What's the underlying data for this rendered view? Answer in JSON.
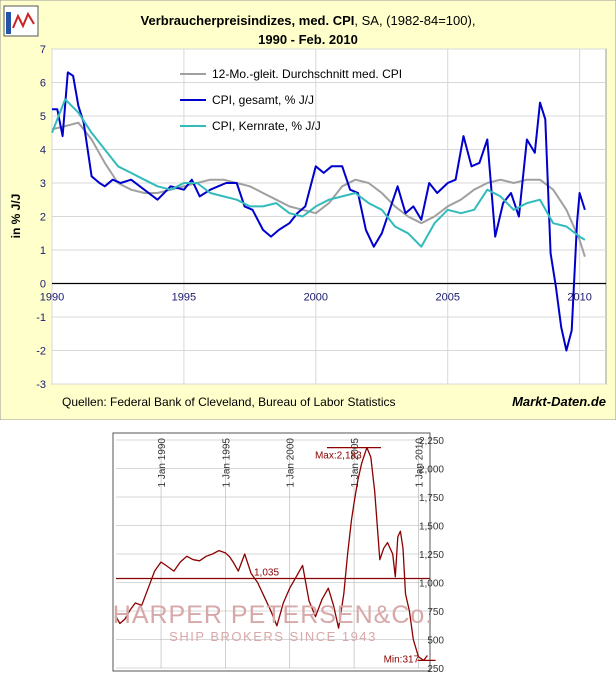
{
  "chart_data": [
    {
      "type": "line",
      "title": "Verbraucherpreisindizes, med. CPI",
      "title_suffix": ", SA, (1982-84=100),",
      "subtitle": "1990 - Feb. 2010",
      "ylabel": "in % J/J",
      "xlabel": "",
      "x_ticks": [
        "1990",
        "1995",
        "2000",
        "2005",
        "2010"
      ],
      "y_ticks": [
        "7",
        "6",
        "5",
        "4",
        "3",
        "2",
        "1",
        "0",
        "-1",
        "-2",
        "-3"
      ],
      "xlim": [
        1990,
        2011
      ],
      "ylim": [
        -3,
        7
      ],
      "grid": true,
      "legend_position": "top-center",
      "source": "Quellen: Federal Bank of Cleveland, Bureau of Labor Statistics",
      "brand": "Markt-Daten.de",
      "colors": {
        "background": "#ffffcc",
        "plot": "#ffffff",
        "border": "#999999",
        "axis_text": "#1a1a6e"
      },
      "series": [
        {
          "name": "12-Mo.-gleit. Durchschnitt med. CPI",
          "color": "#a0a0a0",
          "x": [
            1990.0,
            1990.5,
            1991.0,
            1991.5,
            1992.0,
            1992.5,
            1993.0,
            1993.5,
            1994.0,
            1994.5,
            1995.0,
            1995.5,
            1996.0,
            1996.5,
            1997.0,
            1997.5,
            1998.0,
            1998.5,
            1999.0,
            1999.5,
            2000.0,
            2000.5,
            2001.0,
            2001.5,
            2002.0,
            2002.5,
            2003.0,
            2003.5,
            2004.0,
            2004.5,
            2005.0,
            2005.5,
            2006.0,
            2006.5,
            2007.0,
            2007.5,
            2008.0,
            2008.5,
            2009.0,
            2009.5,
            2010.0,
            2010.2
          ],
          "values": [
            4.6,
            4.7,
            4.8,
            4.3,
            3.6,
            3.0,
            2.8,
            2.7,
            2.7,
            2.8,
            2.9,
            3.0,
            3.1,
            3.1,
            3.0,
            2.9,
            2.7,
            2.5,
            2.3,
            2.2,
            2.1,
            2.4,
            2.9,
            3.1,
            3.0,
            2.7,
            2.3,
            2.0,
            1.8,
            2.0,
            2.3,
            2.5,
            2.8,
            3.0,
            3.1,
            3.0,
            3.1,
            3.1,
            2.8,
            2.2,
            1.3,
            0.8
          ]
        },
        {
          "name": "CPI, gesamt, % J/J",
          "color": "#0000cc",
          "x": [
            1990.0,
            1990.2,
            1990.4,
            1990.6,
            1990.8,
            1991.0,
            1991.2,
            1991.5,
            1991.8,
            1992.0,
            1992.3,
            1992.6,
            1993.0,
            1993.5,
            1994.0,
            1994.5,
            1995.0,
            1995.3,
            1995.6,
            1996.0,
            1996.3,
            1996.6,
            1997.0,
            1997.3,
            1997.6,
            1998.0,
            1998.3,
            1998.6,
            1999.0,
            1999.3,
            1999.6,
            2000.0,
            2000.3,
            2000.6,
            2001.0,
            2001.3,
            2001.6,
            2001.9,
            2002.2,
            2002.5,
            2002.8,
            2003.1,
            2003.4,
            2003.7,
            2004.0,
            2004.3,
            2004.6,
            2005.0,
            2005.3,
            2005.6,
            2005.9,
            2006.2,
            2006.5,
            2006.8,
            2007.1,
            2007.4,
            2007.7,
            2008.0,
            2008.3,
            2008.5,
            2008.7,
            2008.9,
            2009.1,
            2009.3,
            2009.5,
            2009.7,
            2009.9,
            2010.0,
            2010.2
          ],
          "values": [
            5.2,
            5.2,
            4.4,
            6.3,
            6.2,
            5.3,
            4.8,
            3.2,
            3.0,
            2.9,
            3.1,
            3.0,
            3.1,
            2.8,
            2.5,
            2.9,
            2.8,
            3.1,
            2.6,
            2.8,
            2.9,
            3.0,
            3.0,
            2.3,
            2.2,
            1.6,
            1.4,
            1.6,
            1.8,
            2.1,
            2.3,
            3.5,
            3.3,
            3.5,
            3.5,
            2.8,
            2.7,
            1.6,
            1.1,
            1.5,
            2.2,
            2.9,
            2.1,
            2.3,
            1.9,
            3.0,
            2.7,
            3.0,
            3.1,
            4.4,
            3.5,
            3.6,
            4.3,
            1.4,
            2.4,
            2.7,
            2.0,
            4.3,
            3.9,
            5.4,
            4.9,
            0.9,
            -0.1,
            -1.3,
            -2.0,
            -1.4,
            1.8,
            2.7,
            2.2
          ]
        },
        {
          "name": "CPI, Kernrate, % J/J",
          "color": "#33bbbb",
          "x": [
            1990.0,
            1990.5,
            1991.0,
            1991.5,
            1992.0,
            1992.5,
            1993.0,
            1993.5,
            1994.0,
            1994.5,
            1995.0,
            1995.5,
            1996.0,
            1996.5,
            1997.0,
            1997.5,
            1998.0,
            1998.5,
            1999.0,
            1999.5,
            2000.0,
            2000.5,
            2001.0,
            2001.5,
            2002.0,
            2002.5,
            2003.0,
            2003.5,
            2004.0,
            2004.5,
            2005.0,
            2005.5,
            2006.0,
            2006.5,
            2007.0,
            2007.5,
            2008.0,
            2008.5,
            2009.0,
            2009.5,
            2010.0,
            2010.2
          ],
          "values": [
            4.5,
            5.5,
            5.1,
            4.5,
            4.0,
            3.5,
            3.3,
            3.1,
            2.9,
            2.8,
            3.0,
            3.0,
            2.7,
            2.6,
            2.5,
            2.3,
            2.3,
            2.4,
            2.1,
            2.0,
            2.3,
            2.5,
            2.6,
            2.7,
            2.4,
            2.2,
            1.7,
            1.5,
            1.1,
            1.8,
            2.2,
            2.1,
            2.2,
            2.8,
            2.6,
            2.2,
            2.4,
            2.5,
            1.8,
            1.7,
            1.4,
            1.3
          ]
        }
      ]
    },
    {
      "type": "line",
      "x_ticks": [
        "1 Jan 1990",
        "1 Jan 1995",
        "1 Jan 2000",
        "1 Jan 2005",
        "1 Jan 2010"
      ],
      "y_ticks": [
        "2,250",
        "2,000",
        "1,750",
        "1,500",
        "1,250",
        "1,000",
        "750",
        "500",
        "250"
      ],
      "ylim": [
        250,
        2250
      ],
      "xlim": [
        1986.5,
        2010.9
      ],
      "reference_line": {
        "label": "1,035",
        "value": 1035
      },
      "max_label": "Max:2,183",
      "min_label": "Min:317",
      "watermark_line1": "HARPER PETERSEN&Co.",
      "watermark_line2": "SHIP BROKERS SINCE 1943",
      "colors": {
        "line": "#8b0000",
        "grid": "#b0b0b0",
        "watermark": "#d8a8a8"
      },
      "series": [
        {
          "color": "#8b0000",
          "x": [
            1986.5,
            1986.8,
            1987.2,
            1987.6,
            1988.0,
            1988.5,
            1989.0,
            1989.5,
            1990.0,
            1990.5,
            1991.0,
            1991.5,
            1992.0,
            1992.5,
            1993.0,
            1993.5,
            1994.0,
            1994.5,
            1995.0,
            1995.3,
            1995.6,
            1996.0,
            1996.5,
            1997.0,
            1997.5,
            1998.0,
            1998.5,
            1999.0,
            1999.5,
            2000.0,
            2000.5,
            2001.0,
            2001.5,
            2002.0,
            2002.5,
            2003.0,
            2003.4,
            2003.8,
            2004.2,
            2004.5,
            2004.8,
            2005.0,
            2005.3,
            2005.6,
            2006.0,
            2006.3,
            2006.6,
            2007.0,
            2007.3,
            2007.6,
            2008.0,
            2008.2,
            2008.4,
            2008.6,
            2008.8,
            2009.0,
            2009.3,
            2009.6,
            2010.0,
            2010.4,
            2010.7
          ],
          "values": [
            700,
            640,
            680,
            760,
            820,
            800,
            950,
            1100,
            1180,
            1140,
            1100,
            1180,
            1230,
            1200,
            1190,
            1230,
            1250,
            1280,
            1260,
            1230,
            1180,
            1100,
            1250,
            1080,
            1000,
            880,
            760,
            620,
            820,
            950,
            1050,
            1150,
            840,
            700,
            850,
            950,
            800,
            600,
            900,
            1250,
            1550,
            1700,
            1900,
            2050,
            2183,
            2100,
            1800,
            1200,
            1300,
            1350,
            1250,
            1050,
            1400,
            1450,
            1300,
            900,
            750,
            500,
            350,
            317,
            360
          ]
        }
      ]
    }
  ]
}
